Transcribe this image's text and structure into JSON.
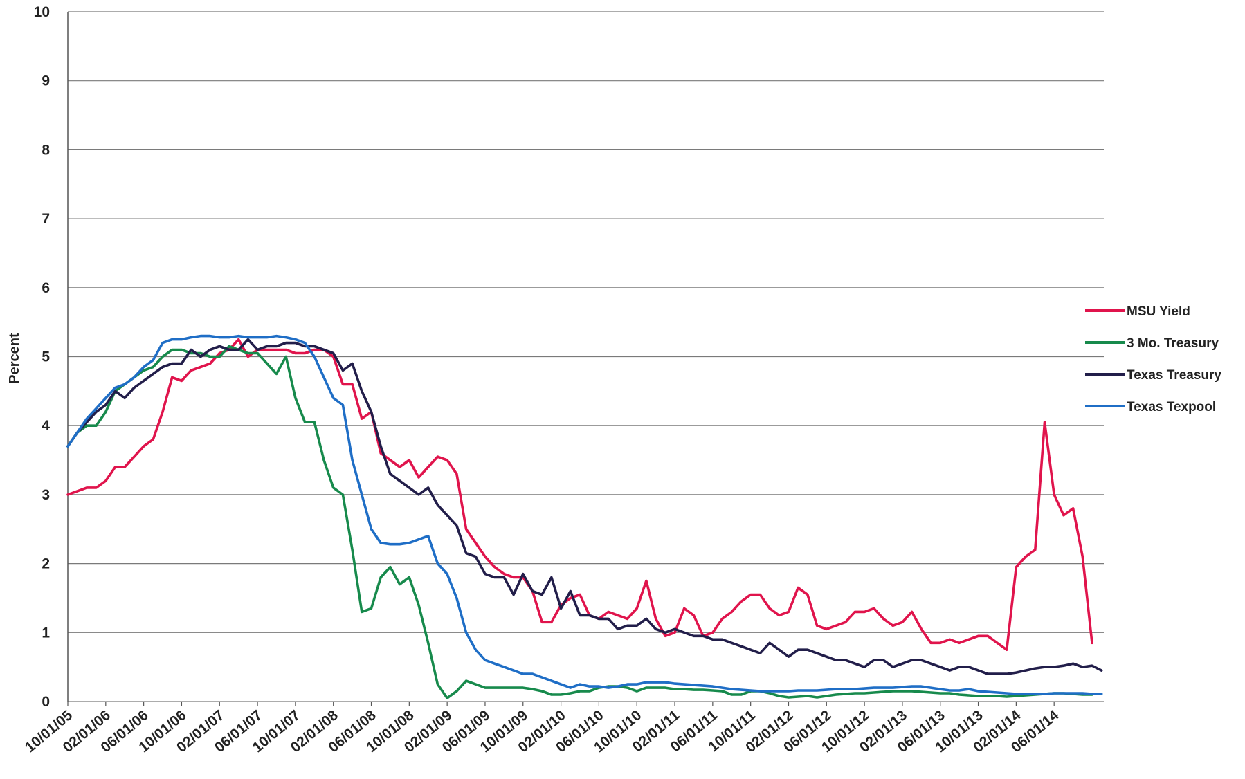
{
  "chart_data": {
    "type": "line",
    "title": "",
    "xlabel": "",
    "ylabel": "Percent",
    "ylim": [
      0,
      10
    ],
    "yticks": [
      "0",
      "1",
      "2",
      "3",
      "4",
      "5",
      "6",
      "7",
      "8",
      "9",
      "10"
    ],
    "grid": true,
    "legend_position": "right",
    "x_tick_labels": [
      "10/01/05",
      "02/01/06",
      "06/01/06",
      "10/01/06",
      "02/01/07",
      "06/01/07",
      "10/01/07",
      "02/01/08",
      "06/01/08",
      "10/01/08",
      "02/01/09",
      "06/01/09",
      "10/01/09",
      "02/01/10",
      "06/01/10",
      "10/01/10",
      "02/01/11",
      "06/01/11",
      "10/01/11",
      "02/01/12",
      "06/01/12",
      "10/01/12",
      "02/01/13",
      "06/01/13",
      "10/01/13",
      "02/01/14",
      "06/01/14"
    ],
    "x_start": "2005-10",
    "series": [
      {
        "name": "MSU Yield",
        "color": "#e0144c",
        "values": [
          3.0,
          3.05,
          3.1,
          3.1,
          3.2,
          3.4,
          3.4,
          3.55,
          3.7,
          3.8,
          4.2,
          4.7,
          4.65,
          4.8,
          4.85,
          4.9,
          5.05,
          5.1,
          5.25,
          5.0,
          5.1,
          5.1,
          5.1,
          5.1,
          5.05,
          5.05,
          5.1,
          5.1,
          5.0,
          4.6,
          4.6,
          4.1,
          4.2,
          3.6,
          3.5,
          3.4,
          3.5,
          3.25,
          3.4,
          3.55,
          3.5,
          3.3,
          2.5,
          2.3,
          2.1,
          1.95,
          1.85,
          1.8,
          1.8,
          1.6,
          1.15,
          1.15,
          1.4,
          1.5,
          1.55,
          1.25,
          1.2,
          1.3,
          1.25,
          1.2,
          1.35,
          1.75,
          1.2,
          0.95,
          1.0,
          1.35,
          1.25,
          0.95,
          1.0,
          1.2,
          1.3,
          1.45,
          1.55,
          1.55,
          1.35,
          1.25,
          1.3,
          1.65,
          1.55,
          1.1,
          1.05,
          1.1,
          1.15,
          1.3,
          1.3,
          1.35,
          1.2,
          1.1,
          1.15,
          1.3,
          1.05,
          0.85,
          0.85,
          0.9,
          0.85,
          0.9,
          0.95,
          0.95,
          0.85,
          0.75,
          1.95,
          2.1,
          2.2,
          4.05,
          3.0,
          2.7,
          2.8,
          2.1,
          0.85
        ]
      },
      {
        "name": "3 Mo. Treasury",
        "color": "#178a4c",
        "values": [
          3.7,
          3.9,
          4.0,
          4.0,
          4.2,
          4.5,
          4.6,
          4.7,
          4.8,
          4.85,
          5.0,
          5.1,
          5.1,
          5.05,
          5.05,
          5.0,
          5.0,
          5.15,
          5.1,
          5.05,
          5.05,
          4.9,
          4.75,
          5.0,
          4.4,
          4.05,
          4.05,
          3.5,
          3.1,
          3.0,
          2.2,
          1.3,
          1.35,
          1.8,
          1.95,
          1.7,
          1.8,
          1.4,
          0.85,
          0.25,
          0.05,
          0.15,
          0.3,
          0.25,
          0.2,
          0.2,
          0.2,
          0.2,
          0.2,
          0.18,
          0.15,
          0.1,
          0.1,
          0.12,
          0.15,
          0.15,
          0.2,
          0.22,
          0.22,
          0.2,
          0.15,
          0.2,
          0.2,
          0.2,
          0.18,
          0.18,
          0.17,
          0.17,
          0.16,
          0.15,
          0.1,
          0.1,
          0.15,
          0.15,
          0.12,
          0.08,
          0.06,
          0.07,
          0.08,
          0.06,
          0.08,
          0.1,
          0.11,
          0.12,
          0.12,
          0.13,
          0.14,
          0.15,
          0.15,
          0.15,
          0.14,
          0.13,
          0.12,
          0.12,
          0.1,
          0.09,
          0.08,
          0.08,
          0.08,
          0.07,
          0.08,
          0.09,
          0.1,
          0.11,
          0.12,
          0.12,
          0.11,
          0.1,
          0.1
        ]
      },
      {
        "name": "Texas Treasury",
        "color": "#221e4a",
        "values": [
          3.7,
          3.9,
          4.05,
          4.2,
          4.3,
          4.5,
          4.4,
          4.55,
          4.65,
          4.75,
          4.85,
          4.9,
          4.9,
          5.1,
          5.0,
          5.1,
          5.15,
          5.1,
          5.1,
          5.25,
          5.1,
          5.15,
          5.15,
          5.2,
          5.2,
          5.15,
          5.15,
          5.1,
          5.05,
          4.8,
          4.9,
          4.5,
          4.2,
          3.7,
          3.3,
          3.2,
          3.1,
          3.0,
          3.1,
          2.85,
          2.7,
          2.55,
          2.15,
          2.1,
          1.85,
          1.8,
          1.8,
          1.55,
          1.85,
          1.6,
          1.55,
          1.8,
          1.35,
          1.6,
          1.25,
          1.25,
          1.2,
          1.2,
          1.05,
          1.1,
          1.1,
          1.2,
          1.05,
          1.0,
          1.05,
          1.0,
          0.95,
          0.95,
          0.9,
          0.9,
          0.85,
          0.8,
          0.75,
          0.7,
          0.85,
          0.75,
          0.65,
          0.75,
          0.75,
          0.7,
          0.65,
          0.6,
          0.6,
          0.55,
          0.5,
          0.6,
          0.6,
          0.5,
          0.55,
          0.6,
          0.6,
          0.55,
          0.5,
          0.45,
          0.5,
          0.5,
          0.45,
          0.4,
          0.4,
          0.4,
          0.42,
          0.45,
          0.48,
          0.5,
          0.5,
          0.52,
          0.55,
          0.5,
          0.52,
          0.45
        ]
      },
      {
        "name": "Texas Texpool",
        "color": "#1f6ec6",
        "values": [
          3.7,
          3.9,
          4.1,
          4.25,
          4.4,
          4.55,
          4.6,
          4.7,
          4.85,
          4.95,
          5.2,
          5.25,
          5.25,
          5.28,
          5.3,
          5.3,
          5.28,
          5.28,
          5.3,
          5.28,
          5.28,
          5.28,
          5.3,
          5.28,
          5.25,
          5.2,
          5.0,
          4.7,
          4.4,
          4.3,
          3.5,
          3.0,
          2.5,
          2.3,
          2.28,
          2.28,
          2.3,
          2.35,
          2.4,
          2.0,
          1.85,
          1.5,
          1.0,
          0.75,
          0.6,
          0.55,
          0.5,
          0.45,
          0.4,
          0.4,
          0.35,
          0.3,
          0.25,
          0.2,
          0.25,
          0.22,
          0.22,
          0.2,
          0.22,
          0.25,
          0.25,
          0.28,
          0.28,
          0.28,
          0.26,
          0.25,
          0.24,
          0.23,
          0.22,
          0.2,
          0.18,
          0.17,
          0.16,
          0.15,
          0.15,
          0.15,
          0.15,
          0.16,
          0.16,
          0.16,
          0.17,
          0.18,
          0.18,
          0.18,
          0.19,
          0.2,
          0.2,
          0.2,
          0.21,
          0.22,
          0.22,
          0.2,
          0.18,
          0.16,
          0.16,
          0.18,
          0.15,
          0.14,
          0.13,
          0.12,
          0.11,
          0.11,
          0.11,
          0.11,
          0.12,
          0.12,
          0.12,
          0.12,
          0.11,
          0.11
        ]
      }
    ]
  }
}
